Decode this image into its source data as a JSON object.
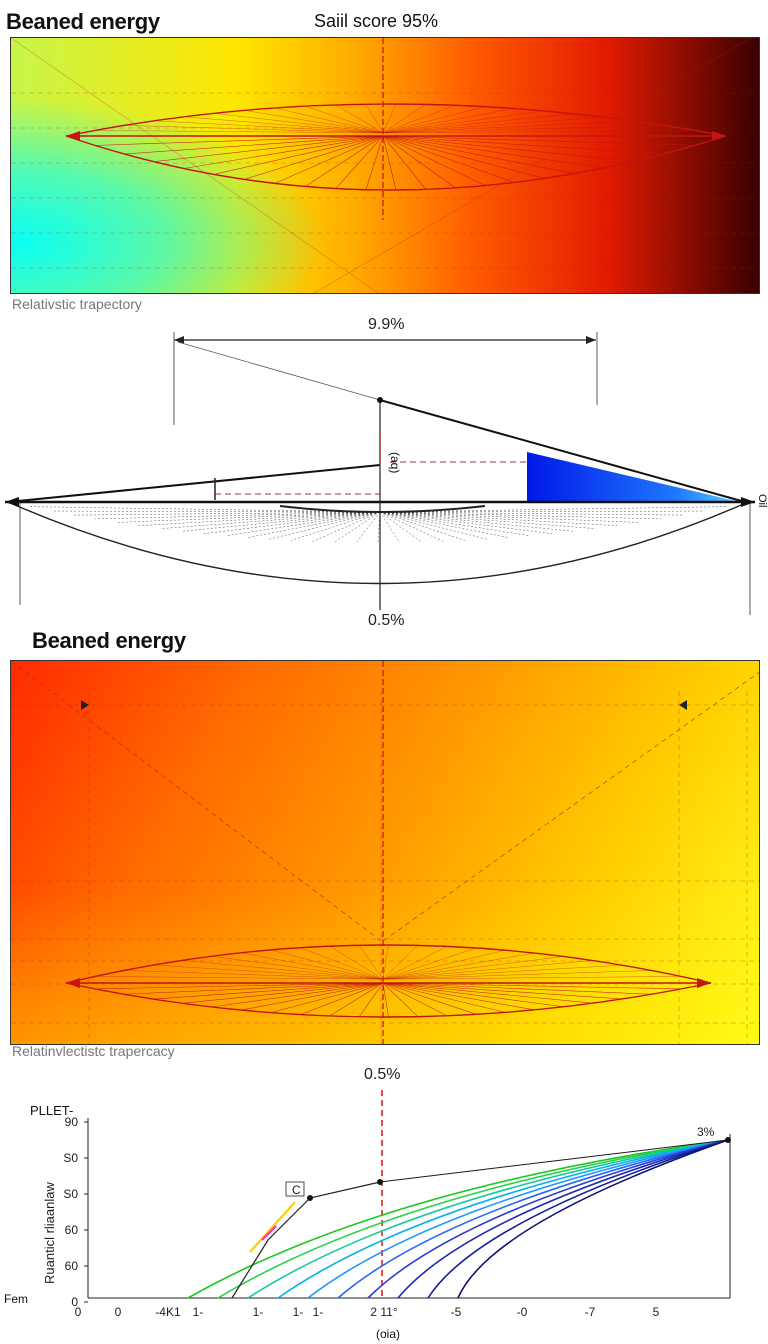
{
  "header": {
    "title_top": "Beaned energy",
    "score": "Saiil score 95%"
  },
  "caption_top": "Relativstic trapectory",
  "diagram": {
    "top_pct": "9.9%",
    "bottom_pct": "0.5%",
    "side_label": "(aq)",
    "right_label": "Oil"
  },
  "title_middle": "Beaned energy",
  "caption_middle": "Relatinvlectistc trapercacy",
  "chart_data": {
    "type": "line",
    "title": "0.5%",
    "legend_label": "PLLET-",
    "ylabel": "Ruanticl rliaanlaw",
    "xlabel": "(oia)",
    "y_ticks": [
      "90",
      "S0",
      "S0",
      "60",
      "60",
      "0"
    ],
    "y_bottom_label": "Fem",
    "x_ticks": [
      "0",
      "0",
      "-4K1",
      "1-",
      "1-",
      "1-",
      "1-",
      "2 11°",
      "-5",
      "-0",
      "-7",
      "5"
    ],
    "peak_label": "3%",
    "point_label": "C",
    "series_count": 10,
    "colors": [
      "#19c81e",
      "#28d24a",
      "#16c8a0",
      "#00b4e6",
      "#1e96ff",
      "#2864ff",
      "#2a3cd2",
      "#1e28b4",
      "#141e96",
      "#0a1478"
    ]
  }
}
